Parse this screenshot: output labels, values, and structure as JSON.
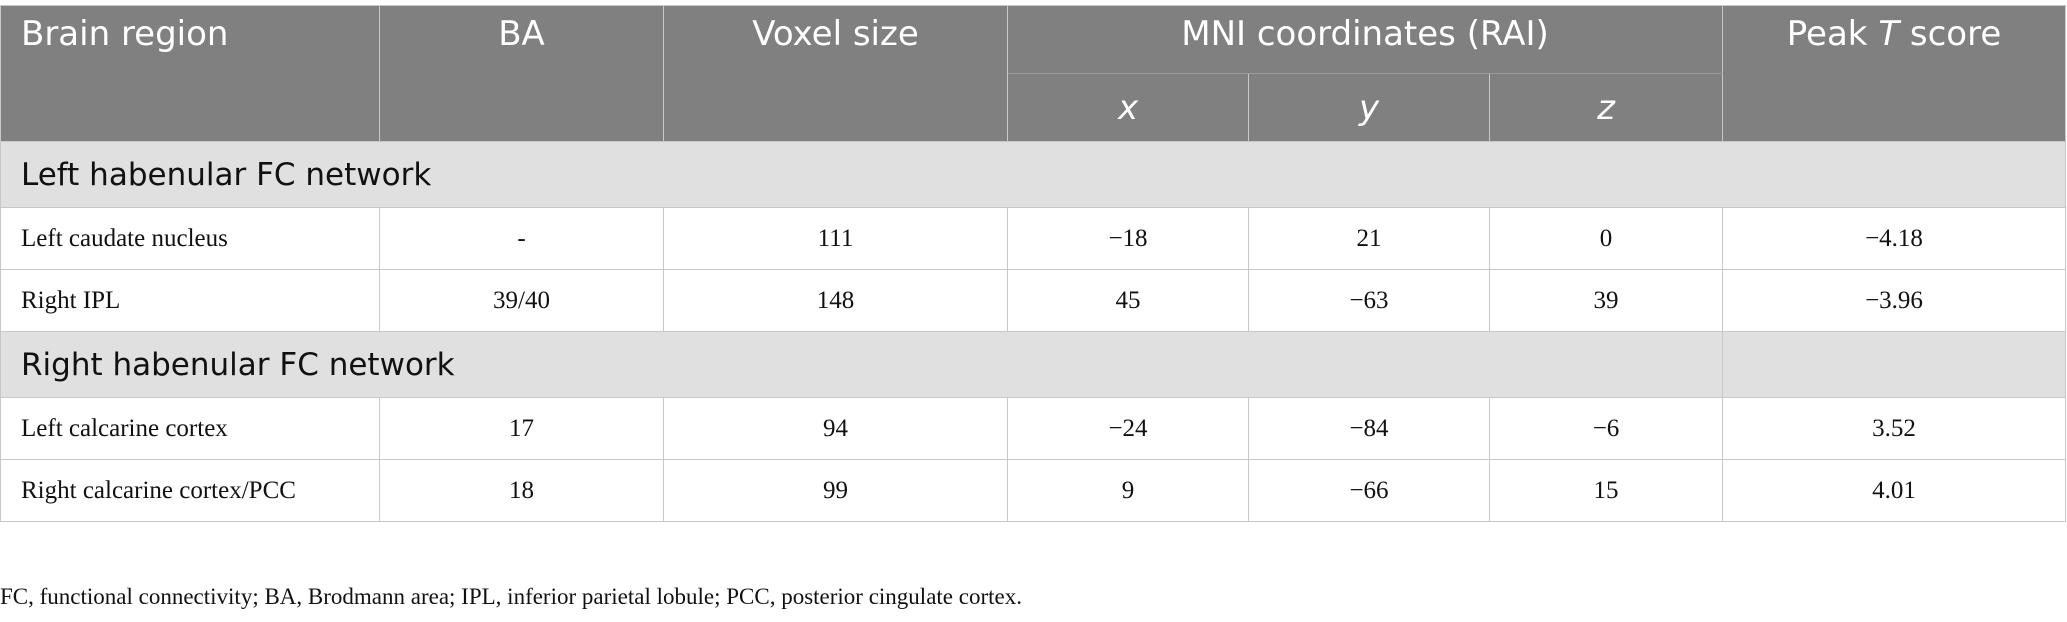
{
  "header": {
    "brain_region": "Brain region",
    "ba": "BA",
    "voxel_size": "Voxel size",
    "mni": "MNI coordinates (RAI)",
    "x": "x",
    "y": "y",
    "z": "z",
    "peak_prefix": "Peak ",
    "peak_italic": "T",
    "peak_suffix": " score"
  },
  "sections": [
    {
      "title": "Left habenular FC network",
      "rows": [
        {
          "region": "Left caudate nucleus",
          "ba": "-",
          "voxels": "111",
          "x": "−18",
          "y": "21",
          "z": "0",
          "t": "−4.18"
        },
        {
          "region": "Right IPL",
          "ba": "39/40",
          "voxels": "148",
          "x": "45",
          "y": "−63",
          "z": "39",
          "t": "−3.96"
        }
      ]
    },
    {
      "title": "Right habenular FC network",
      "rows": [
        {
          "region": "Left calcarine cortex",
          "ba": "17",
          "voxels": "94",
          "x": "−24",
          "y": "−84",
          "z": "−6",
          "t": "3.52"
        },
        {
          "region": "Right calcarine cortex/PCC",
          "ba": "18",
          "voxels": "99",
          "x": "9",
          "y": "−66",
          "z": "15",
          "t": "4.01"
        }
      ]
    }
  ],
  "footnote": "FC, functional connectivity; BA, Brodmann area; IPL, inferior parietal lobule; PCC, posterior cingulate cortex."
}
